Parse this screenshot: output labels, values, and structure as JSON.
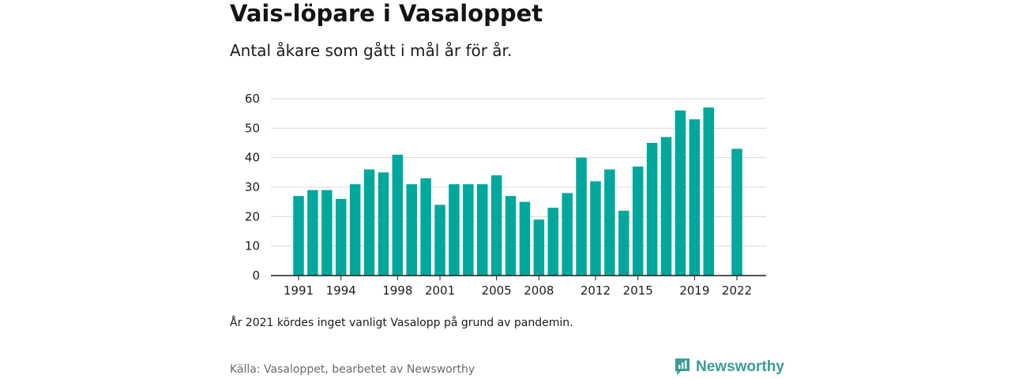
{
  "title": "Vais-löpare i Vasaloppet",
  "subtitle": "Antal åkare som gått i mål år för år.",
  "note": "År 2021 kördes inget vanligt Vasalopp på grund av pandemin.",
  "source": "Källa: Vasaloppet, bearbetet av Newsworthy",
  "brand": {
    "name": "Newsworthy",
    "icon": "newsworthy-logo-icon"
  },
  "colors": {
    "bar": "#00a79d",
    "grid": "#d9d9d9",
    "axis": "#1a1a1a",
    "brand": "#3a9d93"
  },
  "chart_data": {
    "type": "bar",
    "categories": [
      "1991",
      "1992",
      "1993",
      "1994",
      "1995",
      "1996",
      "1997",
      "1998",
      "1999",
      "2000",
      "2001",
      "2002",
      "2003",
      "2004",
      "2005",
      "2006",
      "2007",
      "2008",
      "2009",
      "2010",
      "2011",
      "2012",
      "2013",
      "2014",
      "2015",
      "2016",
      "2017",
      "2018",
      "2019",
      "2020",
      "2021",
      "2022"
    ],
    "values": [
      27,
      29,
      29,
      26,
      31,
      36,
      35,
      41,
      31,
      33,
      24,
      31,
      31,
      31,
      34,
      27,
      25,
      19,
      23,
      28,
      40,
      32,
      36,
      22,
      37,
      45,
      47,
      56,
      53,
      57,
      null,
      43
    ],
    "x_tick_labels": [
      "1991",
      "1994",
      "1998",
      "2001",
      "2005",
      "2008",
      "2012",
      "2015",
      "2019",
      "2022"
    ],
    "y_ticks": [
      0,
      10,
      20,
      30,
      40,
      50,
      60
    ],
    "ylim": [
      0,
      60
    ],
    "xlabel": "",
    "ylabel": "",
    "grid": true,
    "legend": "none"
  }
}
